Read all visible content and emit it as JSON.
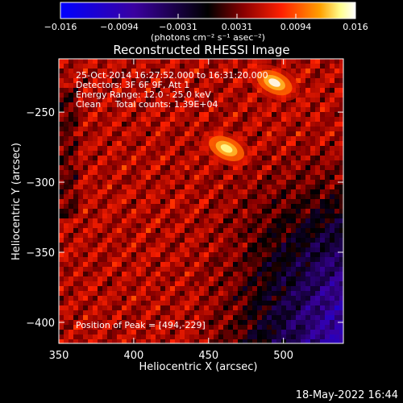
{
  "chart_data": {
    "type": "heatmap",
    "title": "Reconstructed RHESSI Image",
    "xlabel": "Heliocentric X (arcsec)",
    "ylabel": "Heliocentric Y (arcsec)",
    "xlim": [
      350,
      540
    ],
    "ylim": [
      -415,
      -212
    ],
    "x_ticks": [
      350,
      400,
      450,
      500
    ],
    "y_ticks": [
      -250,
      -300,
      -350,
      -400
    ],
    "colorbar": {
      "min": -0.016,
      "max": 0.016,
      "ticks": [
        "−0.016",
        "−0.0094",
        "−0.0031",
        "0.0031",
        "0.0094",
        "0.016"
      ],
      "unit_label": "(photons cm⁻² s⁻¹ asec⁻²)",
      "colormap": [
        "#0000ff",
        "#3a00a0",
        "#000000",
        "#8a0000",
        "#ff2000",
        "#ffa000",
        "#ffff90",
        "#ffffff"
      ]
    },
    "annotations": [
      "25-Oct-2014 16:27:52.000 to 16:31:20.000",
      "Detectors: 3F 6F 9F, Att 1",
      "Energy Range: 12.0 - 25.0 keV",
      "Clean     Total counts: 1.39E+04"
    ],
    "peak_label": "Position of Peak = [494,-229]",
    "peak": [
      494,
      -229
    ],
    "bright_sources": [
      {
        "x": 494,
        "y": -229,
        "value": 0.016
      },
      {
        "x": 462,
        "y": -276,
        "value": 0.013
      }
    ]
  },
  "footer": {
    "date": "18-May-2022 16:44"
  }
}
